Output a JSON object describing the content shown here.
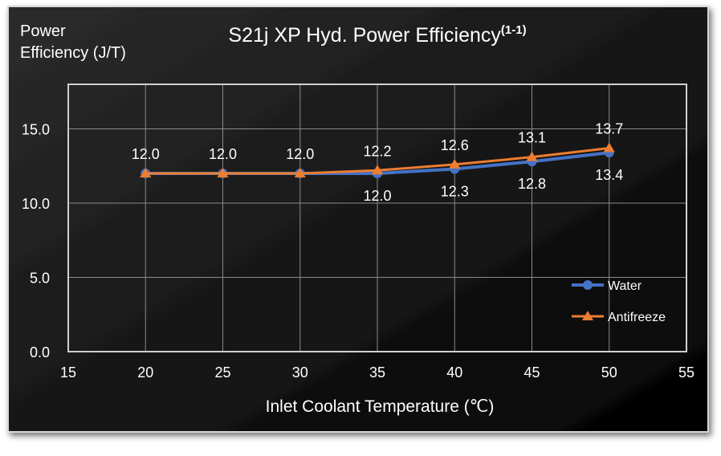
{
  "chart_data": {
    "type": "line",
    "title": "S21j XP Hyd. Power Efficiency",
    "title_superscript": "(1-1)",
    "ylabel_line1": "Power",
    "ylabel_line2": "Efficiency (J/T)",
    "xlabel": "Inlet Coolant Temperature (℃)",
    "xlim": [
      15,
      55
    ],
    "ylim": [
      0,
      18
    ],
    "x_ticks": [
      15,
      20,
      25,
      30,
      35,
      40,
      45,
      50,
      55
    ],
    "y_ticks": [
      0,
      5,
      10,
      15
    ],
    "y_tick_labels": [
      "0.0",
      "5.0",
      "10.0",
      "15.0"
    ],
    "grid": true,
    "legend_placement": "bottom-right",
    "x": [
      20,
      25,
      30,
      35,
      40,
      45,
      50
    ],
    "series": [
      {
        "name": "Water",
        "color": "#4472C4",
        "marker": "circle",
        "values": [
          12.0,
          12.0,
          12.0,
          12.0,
          12.3,
          12.8,
          13.4
        ],
        "labels": [
          null,
          null,
          null,
          "12.0",
          "12.3",
          "12.8",
          "13.4"
        ],
        "label_position": "below"
      },
      {
        "name": "Antifreeze",
        "color": "#ED7D31",
        "marker": "triangle",
        "values": [
          12.0,
          12.0,
          12.0,
          12.2,
          12.6,
          13.1,
          13.7
        ],
        "labels": [
          "12.0",
          "12.0",
          "12.0",
          "12.2",
          "12.6",
          "13.1",
          "13.7"
        ],
        "label_position": "above"
      }
    ]
  }
}
